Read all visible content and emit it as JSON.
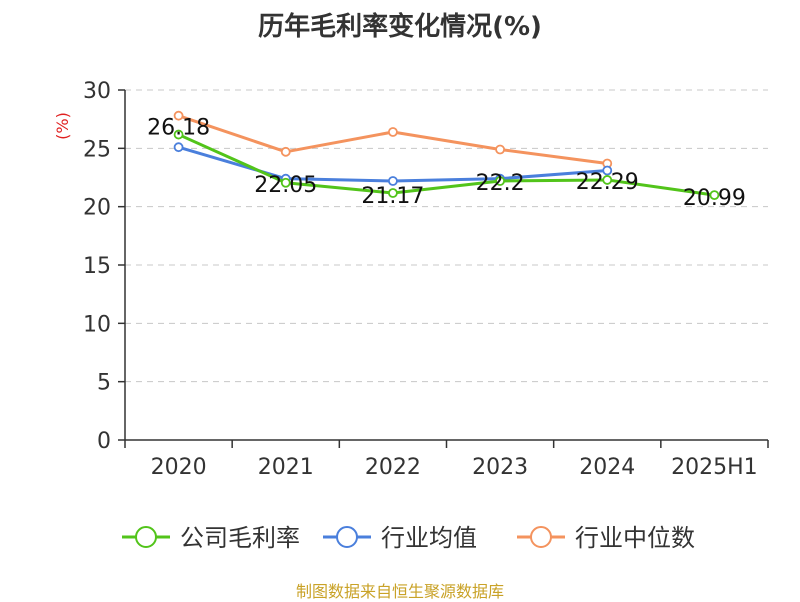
{
  "chart_data": {
    "type": "line",
    "title": "历年毛利率变化情况(%)",
    "ylabel": "(%)",
    "categories": [
      "2020",
      "2021",
      "2022",
      "2023",
      "2024",
      "2025H1"
    ],
    "ylim": [
      0,
      30
    ],
    "yticks": [
      0,
      5,
      10,
      15,
      20,
      25,
      30
    ],
    "grid": true,
    "legend_position": "bottom",
    "series": [
      {
        "name": "公司毛利率",
        "color": "#52c41a",
        "values": [
          26.18,
          22.05,
          21.17,
          22.2,
          22.29,
          20.99
        ],
        "labels": [
          "26.18",
          "22.05",
          "21.17",
          "22.2",
          "22.29",
          "20.99"
        ]
      },
      {
        "name": "行业均值",
        "color": "#4a7fdc",
        "values": [
          25.1,
          22.4,
          22.2,
          22.4,
          23.1,
          null
        ]
      },
      {
        "name": "行业中位数",
        "color": "#f4935e",
        "values": [
          27.8,
          24.7,
          26.4,
          24.9,
          23.7,
          null
        ]
      }
    ]
  },
  "source": "制图数据来自恒生聚源数据库"
}
